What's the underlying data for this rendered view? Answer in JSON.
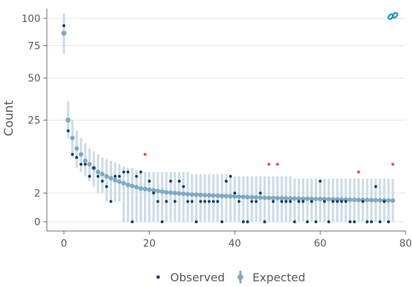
{
  "chart_data": {
    "type": "scatter",
    "xlabel": "",
    "ylabel": "Count",
    "xlim": [
      -4,
      80
    ],
    "y_scale": "sqrt",
    "ylim": [
      0,
      110
    ],
    "x_ticks": [
      0,
      20,
      40,
      60,
      80
    ],
    "y_ticks": [
      0,
      2,
      25,
      50,
      75,
      100
    ],
    "grid": true,
    "legend_position": "bottom",
    "colors": {
      "observed": "#0d3b66",
      "observed_outlier": "#e8483a",
      "expected": "#7ea7c2",
      "expected_interval": "#c6d7e4",
      "link_icon": "#1b8fc6"
    },
    "series": [
      {
        "name": "Observed",
        "x": [
          0,
          1,
          2,
          3,
          4,
          5,
          6,
          7,
          8,
          9,
          10,
          11,
          12,
          13,
          14,
          15,
          16,
          17,
          18,
          19,
          20,
          21,
          22,
          23,
          24,
          25,
          26,
          27,
          28,
          29,
          30,
          31,
          32,
          33,
          34,
          35,
          36,
          37,
          38,
          39,
          40,
          41,
          42,
          43,
          44,
          45,
          46,
          47,
          48,
          49,
          50,
          51,
          52,
          53,
          54,
          55,
          56,
          57,
          58,
          59,
          60,
          61,
          62,
          63,
          64,
          65,
          66,
          67,
          68,
          69,
          70,
          71,
          72,
          73,
          74,
          75,
          76,
          77
        ],
        "values": [
          93,
          20,
          11,
          10,
          8,
          8,
          5,
          7,
          5,
          4,
          3,
          1,
          5,
          5,
          6,
          6,
          0,
          5,
          6,
          11,
          4,
          2,
          1,
          0,
          1,
          4,
          1,
          4,
          3,
          1,
          1,
          0,
          1,
          1,
          1,
          1,
          1,
          0,
          4,
          5,
          2,
          1,
          0,
          0,
          1,
          1,
          2,
          0,
          8,
          1,
          8,
          1,
          1,
          1,
          0,
          1,
          1,
          0,
          1,
          0,
          4,
          1,
          0,
          1,
          1,
          1,
          1,
          0,
          0,
          6,
          1,
          0,
          0,
          3,
          0,
          1,
          0,
          8
        ]
      },
      {
        "name": "Expected",
        "x": [
          0,
          1,
          2,
          3,
          4,
          5,
          6,
          7,
          8,
          9,
          10,
          11,
          12,
          13,
          14,
          15,
          16,
          17,
          18,
          19,
          20,
          21,
          22,
          23,
          24,
          25,
          26,
          27,
          28,
          29,
          30,
          31,
          32,
          33,
          34,
          35,
          36,
          37,
          38,
          39,
          40,
          41,
          42,
          43,
          44,
          45,
          46,
          47,
          48,
          49,
          50,
          51,
          52,
          53,
          54,
          55,
          56,
          57,
          58,
          59,
          60,
          61,
          62,
          63,
          64,
          65,
          66,
          67,
          68,
          69,
          70,
          71,
          72,
          73,
          74,
          75,
          76,
          77
        ],
        "values": [
          86,
          25,
          17,
          13,
          11,
          9,
          8,
          7,
          6,
          5.5,
          5,
          4.6,
          4.2,
          3.9,
          3.6,
          3.3,
          3.1,
          2.9,
          2.7,
          2.6,
          2.5,
          2.4,
          2.3,
          2.2,
          2.1,
          2.05,
          2.0,
          1.95,
          1.9,
          1.85,
          1.8,
          1.78,
          1.75,
          1.72,
          1.7,
          1.68,
          1.65,
          1.62,
          1.6,
          1.58,
          1.55,
          1.53,
          1.5,
          1.48,
          1.46,
          1.44,
          1.42,
          1.4,
          1.38,
          1.37,
          1.36,
          1.35,
          1.33,
          1.32,
          1.31,
          1.3,
          1.29,
          1.28,
          1.27,
          1.26,
          1.25,
          1.24,
          1.23,
          1.22,
          1.21,
          1.2,
          1.19,
          1.18,
          1.17,
          1.16,
          1.15,
          1.15,
          1.14,
          1.13,
          1.12,
          1.11,
          1.1,
          1.1
        ],
        "lower": [
          68,
          17,
          10,
          7,
          6,
          5,
          4,
          3,
          2,
          2,
          1,
          1,
          1,
          1,
          0,
          0,
          0,
          0,
          0,
          0,
          0,
          0,
          0,
          0,
          0,
          0,
          0,
          0,
          0,
          0,
          0,
          0,
          0,
          0,
          0,
          0,
          0,
          0,
          0,
          0,
          0,
          0,
          0,
          0,
          0,
          0,
          0,
          0,
          0,
          0,
          0,
          0,
          0,
          0,
          0,
          0,
          0,
          0,
          0,
          0,
          0,
          0,
          0,
          0,
          0,
          0,
          0,
          0,
          0,
          0,
          0,
          0,
          0,
          0,
          0,
          0,
          0,
          0
        ],
        "upper": [
          105,
          35,
          25,
          20,
          17,
          15,
          13,
          12,
          11,
          10,
          9.5,
          9,
          8.5,
          8,
          7.5,
          7,
          7,
          6.5,
          6,
          6,
          6,
          6,
          6,
          6,
          6,
          6,
          6,
          6,
          6,
          6,
          5.5,
          5.5,
          5.5,
          5.5,
          5.5,
          5.5,
          5.5,
          5.5,
          5.5,
          5,
          5,
          5,
          5,
          5,
          5,
          5,
          5,
          5,
          5,
          5,
          5,
          5,
          5,
          5,
          4.5,
          4.5,
          4.5,
          4.5,
          4.5,
          4.5,
          4.5,
          4.5,
          4.5,
          4.5,
          4.5,
          4.5,
          4.5,
          4.5,
          4.5,
          4.5,
          4.5,
          4.5,
          4.5,
          4.5,
          4.5,
          4.5,
          4.5,
          4.5
        ]
      }
    ],
    "outlier_x": [
      19,
      48,
      50,
      69,
      77
    ]
  },
  "legend": {
    "observed_label": "Observed",
    "expected_label": "Expected"
  },
  "link_icon": {
    "icon": "link-icon"
  }
}
